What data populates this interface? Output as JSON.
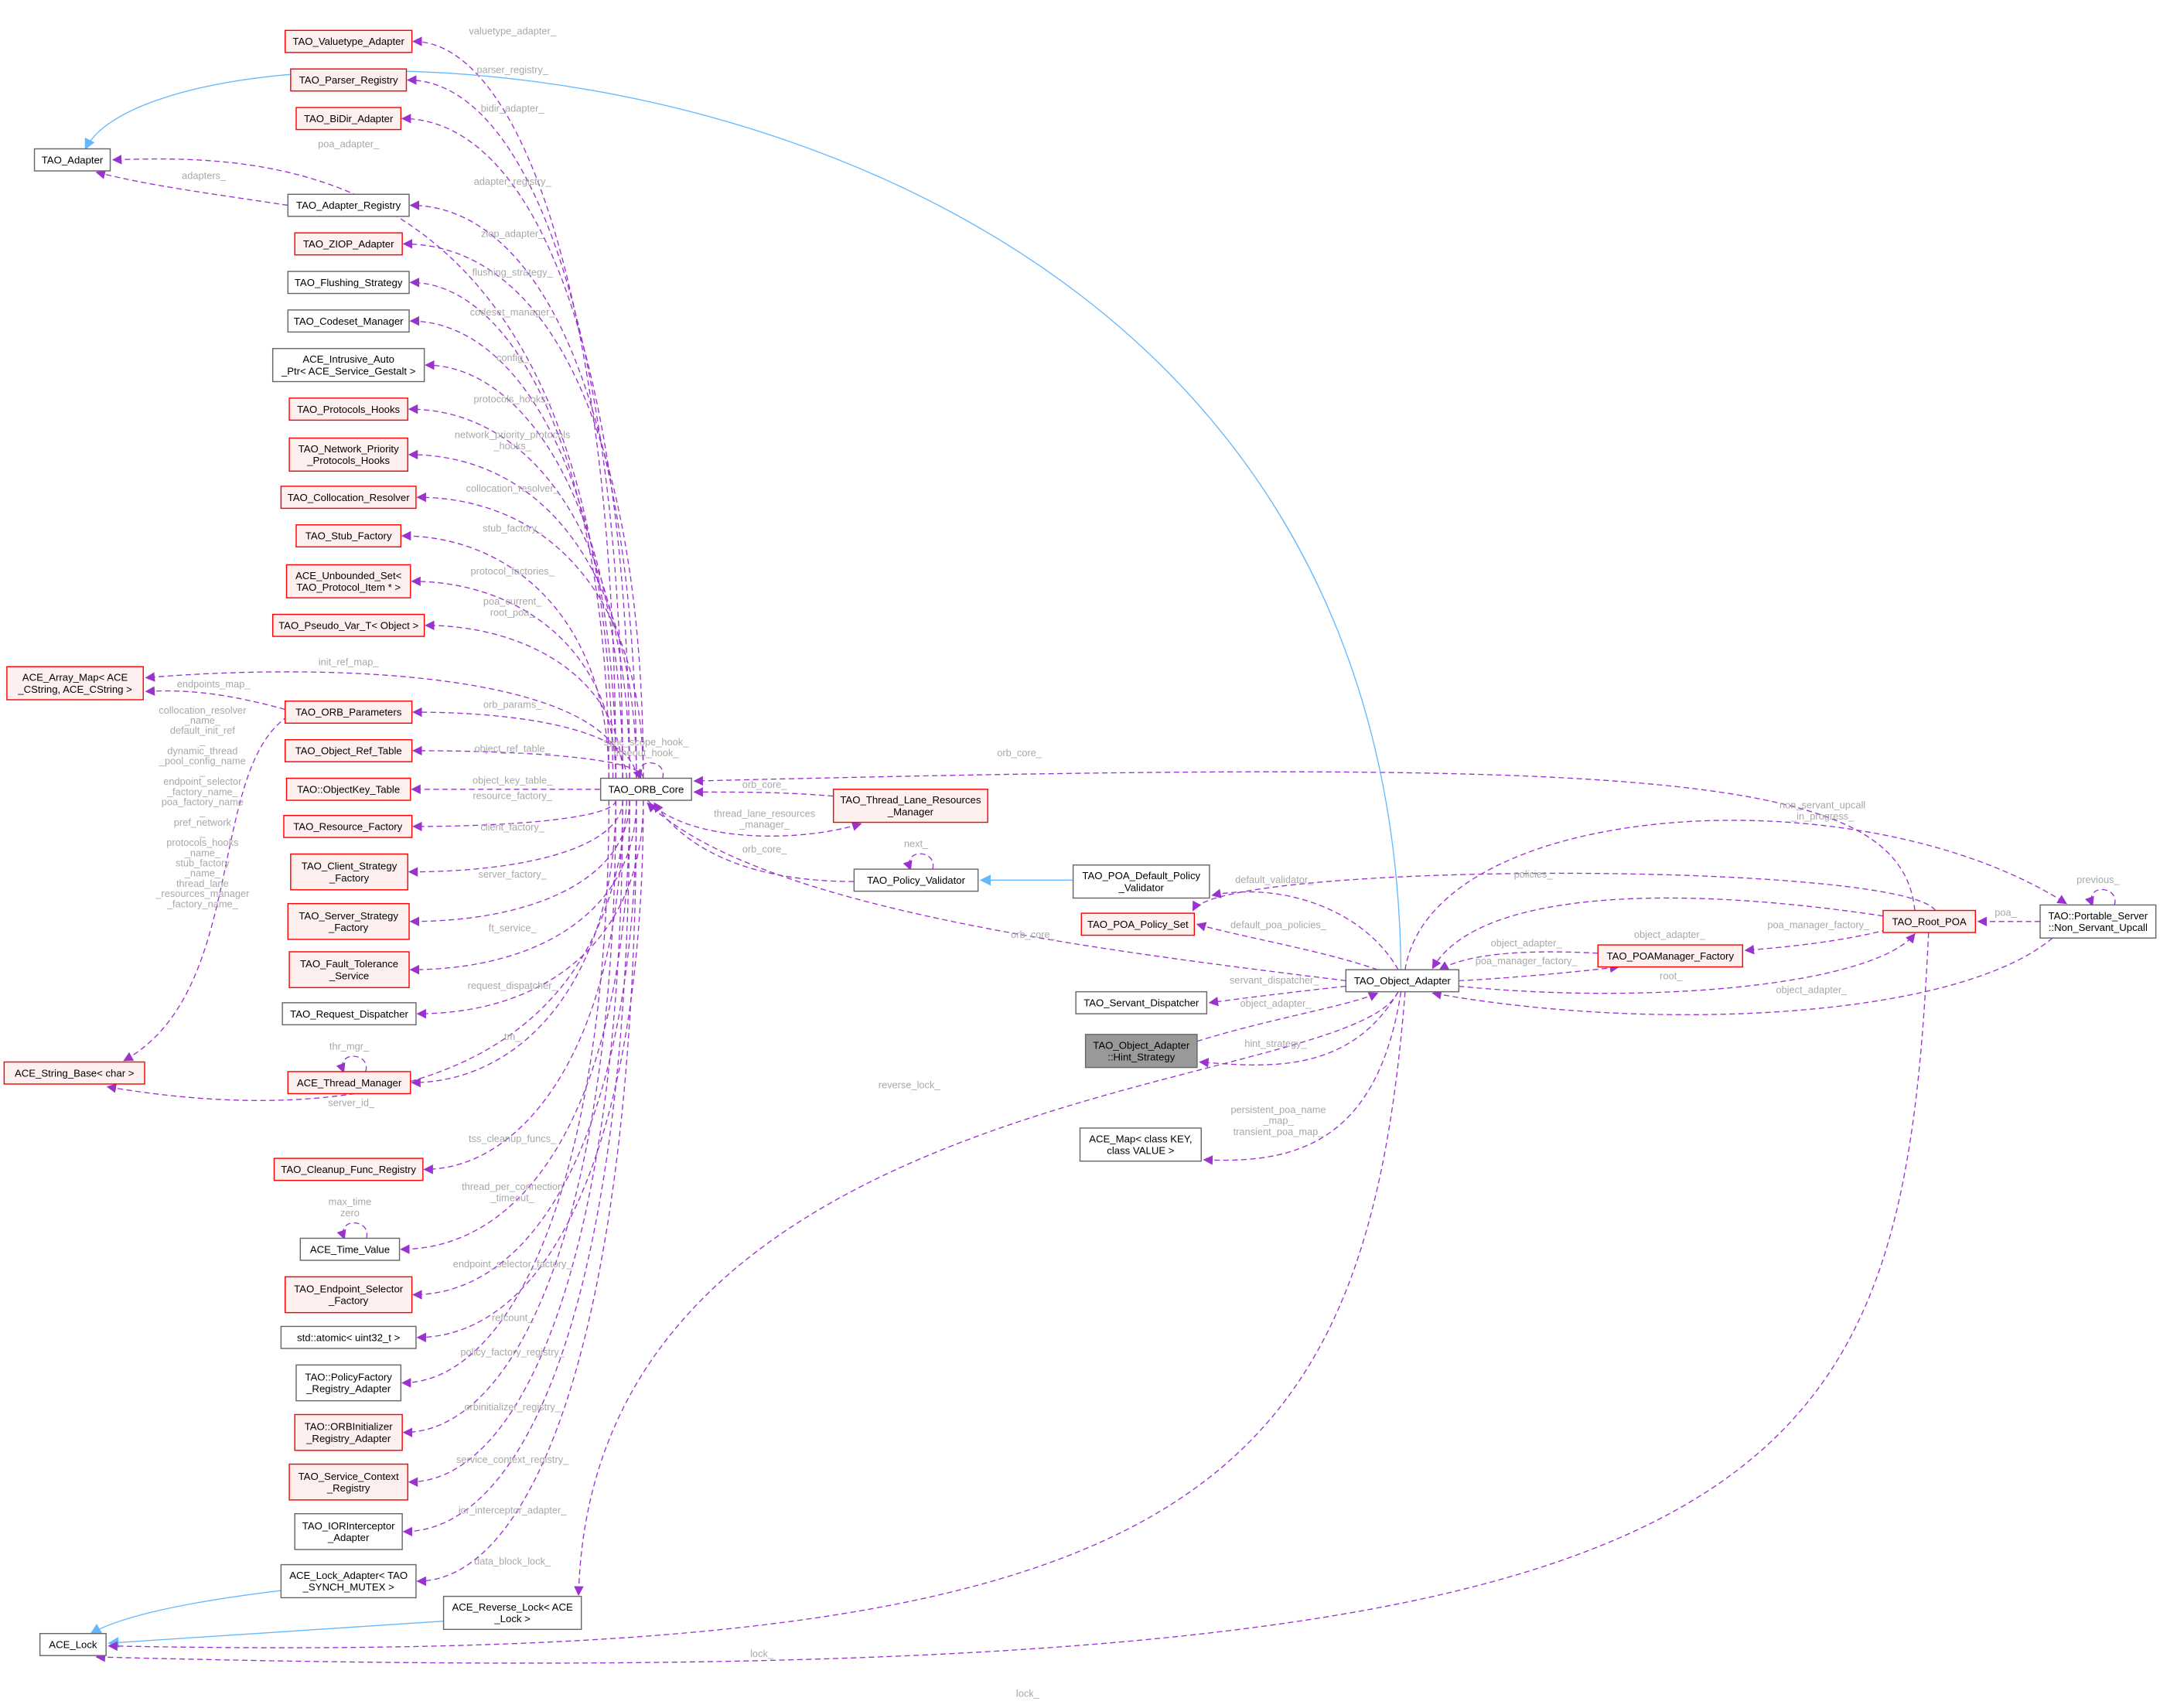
{
  "colors": {
    "member_edge": "#9a32cd",
    "inherit_edge": "#63b8ff",
    "red_border": "#ff0000",
    "red_fill": "#fff0f0",
    "gray_fill": "#999999",
    "label": "#a8a8a8"
  },
  "nodes": [
    {
      "lines": [
        "TAO_Adapter"
      ],
      "style": "black"
    },
    {
      "lines": [
        "TAO_Valuetype_Adapter"
      ],
      "style": "red"
    },
    {
      "lines": [
        "TAO_Parser_Registry"
      ],
      "style": "red"
    },
    {
      "lines": [
        "TAO_BiDir_Adapter"
      ],
      "style": "red"
    },
    {
      "lines": [
        "TAO_Adapter_Registry"
      ],
      "style": "black"
    },
    {
      "lines": [
        "TAO_ZIOP_Adapter"
      ],
      "style": "red"
    },
    {
      "lines": [
        "TAO_Flushing_Strategy"
      ],
      "style": "black"
    },
    {
      "lines": [
        "TAO_Codeset_Manager"
      ],
      "style": "black"
    },
    {
      "lines": [
        "ACE_Intrusive_Auto",
        "_Ptr< ACE_Service_Gestalt >"
      ],
      "style": "black"
    },
    {
      "lines": [
        "TAO_Protocols_Hooks"
      ],
      "style": "red"
    },
    {
      "lines": [
        "TAO_Network_Priority",
        "_Protocols_Hooks"
      ],
      "style": "red"
    },
    {
      "lines": [
        "TAO_Collocation_Resolver"
      ],
      "style": "red"
    },
    {
      "lines": [
        "TAO_Stub_Factory"
      ],
      "style": "red"
    },
    {
      "lines": [
        "ACE_Unbounded_Set<",
        "TAO_Protocol_Item * >"
      ],
      "style": "red"
    },
    {
      "lines": [
        "TAO_Pseudo_Var_T< Object >"
      ],
      "style": "red"
    },
    {
      "lines": [
        "ACE_Array_Map< ACE",
        "_CString, ACE_CString >"
      ],
      "style": "red"
    },
    {
      "lines": [
        "TAO_ORB_Parameters"
      ],
      "style": "red"
    },
    {
      "lines": [
        "TAO_Object_Ref_Table"
      ],
      "style": "red"
    },
    {
      "lines": [
        "TAO::ObjectKey_Table"
      ],
      "style": "red"
    },
    {
      "lines": [
        "TAO_Resource_Factory"
      ],
      "style": "red"
    },
    {
      "lines": [
        "TAO_Client_Strategy",
        "_Factory"
      ],
      "style": "red"
    },
    {
      "lines": [
        "TAO_Server_Strategy",
        "_Factory"
      ],
      "style": "red"
    },
    {
      "lines": [
        "TAO_Fault_Tolerance",
        "_Service"
      ],
      "style": "red"
    },
    {
      "lines": [
        "TAO_Request_Dispatcher"
      ],
      "style": "black"
    },
    {
      "lines": [
        "ACE_String_Base< char >"
      ],
      "style": "red"
    },
    {
      "lines": [
        "ACE_Thread_Manager"
      ],
      "style": "red"
    },
    {
      "lines": [
        "TAO_Cleanup_Func_Registry"
      ],
      "style": "red"
    },
    {
      "lines": [
        "ACE_Time_Value"
      ],
      "style": "black"
    },
    {
      "lines": [
        "TAO_Endpoint_Selector",
        "_Factory"
      ],
      "style": "red"
    },
    {
      "lines": [
        "std::atomic< uint32_t >"
      ],
      "style": "black"
    },
    {
      "lines": [
        "TAO::PolicyFactory",
        "_Registry_Adapter"
      ],
      "style": "black"
    },
    {
      "lines": [
        "TAO::ORBInitializer",
        "_Registry_Adapter"
      ],
      "style": "red"
    },
    {
      "lines": [
        "TAO_Service_Context",
        "_Registry"
      ],
      "style": "red"
    },
    {
      "lines": [
        "TAO_IORInterceptor",
        "_Adapter"
      ],
      "style": "black"
    },
    {
      "lines": [
        "ACE_Lock_Adapter< TAO",
        "_SYNCH_MUTEX >"
      ],
      "style": "black"
    },
    {
      "lines": [
        "ACE_Reverse_Lock< ACE",
        "_Lock >"
      ],
      "style": "black"
    },
    {
      "lines": [
        "ACE_Lock"
      ],
      "style": "black"
    },
    {
      "lines": [
        "TAO_ORB_Core"
      ],
      "style": "black"
    },
    {
      "lines": [
        "TAO_Thread_Lane_Resources",
        "_Manager"
      ],
      "style": "red"
    },
    {
      "lines": [
        "TAO_Policy_Validator"
      ],
      "style": "black"
    },
    {
      "lines": [
        "TAO_POA_Default_Policy",
        "_Validator"
      ],
      "style": "black"
    },
    {
      "lines": [
        "TAO_POA_Policy_Set"
      ],
      "style": "red"
    },
    {
      "lines": [
        "TAO_Servant_Dispatcher"
      ],
      "style": "black"
    },
    {
      "lines": [
        "TAO_Object_Adapter",
        "::Hint_Strategy"
      ],
      "style": "gray"
    },
    {
      "lines": [
        "ACE_Map< class KEY,",
        "class VALUE >"
      ],
      "style": "black"
    },
    {
      "lines": [
        "TAO_Object_Adapter"
      ],
      "style": "black"
    },
    {
      "lines": [
        "TAO_POAManager_Factory"
      ],
      "style": "red"
    },
    {
      "lines": [
        "TAO_Root_POA"
      ],
      "style": "red"
    },
    {
      "lines": [
        "TAO::Portable_Server",
        "::Non_Servant_Upcall"
      ],
      "style": "black"
    }
  ],
  "edges": [
    {
      "from": 37,
      "to": 1,
      "kind": "member",
      "label": [
        "valuetype_adapter_"
      ]
    },
    {
      "from": 37,
      "to": 2,
      "kind": "member",
      "label": [
        "parser_registry_"
      ]
    },
    {
      "from": 37,
      "to": 3,
      "kind": "member",
      "label": [
        "bidir_adapter_"
      ]
    },
    {
      "from": 37,
      "to": 0,
      "kind": "member",
      "label": [
        "poa_adapter_"
      ]
    },
    {
      "from": 4,
      "to": 0,
      "kind": "member",
      "label": [
        "adapters_"
      ]
    },
    {
      "from": 37,
      "to": 4,
      "kind": "member",
      "label": [
        "adapter_registry_"
      ]
    },
    {
      "from": 37,
      "to": 5,
      "kind": "member",
      "label": [
        "ziop_adapter_"
      ]
    },
    {
      "from": 37,
      "to": 6,
      "kind": "member",
      "label": [
        "flushing_strategy_"
      ]
    },
    {
      "from": 37,
      "to": 7,
      "kind": "member",
      "label": [
        "codeset_manager_"
      ]
    },
    {
      "from": 37,
      "to": 8,
      "kind": "member",
      "label": [
        "config_"
      ]
    },
    {
      "from": 37,
      "to": 9,
      "kind": "member",
      "label": [
        "protocols_hooks_"
      ]
    },
    {
      "from": 37,
      "to": 10,
      "kind": "member",
      "label": [
        "network_priority_protocols",
        "_hooks_"
      ]
    },
    {
      "from": 37,
      "to": 11,
      "kind": "member",
      "label": [
        "collocation_resolver_"
      ]
    },
    {
      "from": 37,
      "to": 12,
      "kind": "member",
      "label": [
        "stub_factory_"
      ]
    },
    {
      "from": 37,
      "to": 13,
      "kind": "member",
      "label": [
        "protocol_factories_"
      ]
    },
    {
      "from": 37,
      "to": 14,
      "kind": "member",
      "label": [
        "poa_current_",
        "root_poa_"
      ]
    },
    {
      "from": 37,
      "to": 15,
      "kind": "member",
      "label": [
        "init_ref_map_"
      ]
    },
    {
      "from": 16,
      "to": 15,
      "kind": "member",
      "label": [
        "endpoints_map_"
      ]
    },
    {
      "from": 16,
      "to": 24,
      "kind": "member",
      "label": [
        "collocation_resolver",
        "_name_",
        "default_init_ref",
        "_",
        "dynamic_thread",
        "_pool_config_name",
        "_",
        "endpoint_selector",
        "_factory_name_",
        "poa_factory_name",
        "_",
        "pref_network",
        "_",
        "protocols_hooks",
        "_name_",
        "stub_factory",
        "_name_",
        "thread_lane",
        "_resources_manager",
        "_factory_name_"
      ]
    },
    {
      "from": 37,
      "to": 16,
      "kind": "member",
      "label": [
        "orb_params_"
      ]
    },
    {
      "from": 37,
      "to": 17,
      "kind": "member",
      "label": [
        "object_ref_table_"
      ]
    },
    {
      "from": 37,
      "to": 18,
      "kind": "member",
      "label": [
        "object_key_table_"
      ]
    },
    {
      "from": 37,
      "to": 19,
      "kind": "member",
      "label": [
        "resource_factory_"
      ]
    },
    {
      "from": 37,
      "to": 20,
      "kind": "member",
      "label": [
        "client_factory_"
      ]
    },
    {
      "from": 37,
      "to": 21,
      "kind": "member",
      "label": [
        "server_factory_"
      ]
    },
    {
      "from": 37,
      "to": 22,
      "kind": "member",
      "label": [
        "ft_service_"
      ]
    },
    {
      "from": 37,
      "to": 23,
      "kind": "member",
      "label": [
        "request_dispatcher_"
      ]
    },
    {
      "from": 37,
      "to": 25,
      "kind": "member",
      "label": [
        "tm_"
      ]
    },
    {
      "from": 25,
      "to": 25,
      "kind": "member",
      "label": [
        "thr_mgr_"
      ]
    },
    {
      "from": 37,
      "to": 24,
      "kind": "member",
      "label": [
        "server_id_"
      ]
    },
    {
      "from": 37,
      "to": 26,
      "kind": "member",
      "label": [
        "tss_cleanup_funcs_"
      ]
    },
    {
      "from": 37,
      "to": 27,
      "kind": "member",
      "label": [
        "thread_per_connection",
        "_timeout_"
      ]
    },
    {
      "from": 27,
      "to": 27,
      "kind": "member",
      "label": [
        "max_time",
        "zero"
      ]
    },
    {
      "from": 37,
      "to": 28,
      "kind": "member",
      "label": [
        "endpoint_selector_factory_"
      ]
    },
    {
      "from": 37,
      "to": 29,
      "kind": "member",
      "label": [
        "refcount_"
      ]
    },
    {
      "from": 37,
      "to": 30,
      "kind": "member",
      "label": [
        "policy_factory_registry_"
      ]
    },
    {
      "from": 37,
      "to": 31,
      "kind": "member",
      "label": [
        "orbinitializer_registry_"
      ]
    },
    {
      "from": 37,
      "to": 32,
      "kind": "member",
      "label": [
        "service_context_registry_"
      ]
    },
    {
      "from": 37,
      "to": 33,
      "kind": "member",
      "label": [
        "ior_interceptor_adapter_"
      ]
    },
    {
      "from": 37,
      "to": 34,
      "kind": "member",
      "label": [
        "data_block_lock_"
      ]
    },
    {
      "from": 34,
      "to": 36,
      "kind": "inherit",
      "label": []
    },
    {
      "from": 35,
      "to": 36,
      "kind": "inherit",
      "label": []
    },
    {
      "from": 37,
      "to": 37,
      "kind": "member",
      "label": [
        "sync_scope_hook_",
        "timeout_hook_"
      ]
    },
    {
      "from": 37,
      "to": 38,
      "kind": "member",
      "label": [
        "thread_lane_resources",
        "_manager_"
      ]
    },
    {
      "from": 38,
      "to": 37,
      "kind": "member",
      "label": [
        "orb_core_"
      ]
    },
    {
      "from": 39,
      "to": 37,
      "kind": "member",
      "label": [
        "orb_core_"
      ]
    },
    {
      "from": 39,
      "to": 39,
      "kind": "member",
      "label": [
        "next_"
      ]
    },
    {
      "from": 40,
      "to": 39,
      "kind": "inherit",
      "label": []
    },
    {
      "from": 45,
      "to": 37,
      "kind": "member",
      "label": [
        "orb_core_"
      ]
    },
    {
      "from": 47,
      "to": 37,
      "kind": "member",
      "label": [
        "orb_core_"
      ]
    },
    {
      "from": 45,
      "to": 0,
      "kind": "inherit",
      "label": []
    },
    {
      "from": 45,
      "to": 40,
      "kind": "member",
      "label": [
        "default_validator_"
      ]
    },
    {
      "from": 47,
      "to": 41,
      "kind": "member",
      "label": [
        "policies_"
      ]
    },
    {
      "from": 45,
      "to": 41,
      "kind": "member",
      "label": [
        "default_poa_policies_"
      ]
    },
    {
      "from": 45,
      "to": 42,
      "kind": "member",
      "label": [
        "servant_dispatcher_"
      ]
    },
    {
      "from": 43,
      "to": 45,
      "kind": "member",
      "label": [
        "object_adapter_"
      ]
    },
    {
      "from": 45,
      "to": 43,
      "kind": "member",
      "label": [
        "hint_strategy_"
      ]
    },
    {
      "from": 45,
      "to": 44,
      "kind": "member",
      "label": [
        "persistent_poa_name",
        "_map_",
        "transient_poa_map_"
      ]
    },
    {
      "from": 45,
      "to": 35,
      "kind": "member",
      "label": [
        "reverse_lock_"
      ]
    },
    {
      "from": 45,
      "to": 36,
      "kind": "member",
      "label": [
        "lock_"
      ]
    },
    {
      "from": 47,
      "to": 36,
      "kind": "member",
      "label": [
        "lock_"
      ]
    },
    {
      "from": 47,
      "to": 45,
      "kind": "member",
      "label": [
        "object_adapter_"
      ]
    },
    {
      "from": 46,
      "to": 45,
      "kind": "member",
      "label": [
        "object_adapter_"
      ]
    },
    {
      "from": 45,
      "to": 46,
      "kind": "member",
      "label": [
        "poa_manager_factory_"
      ]
    },
    {
      "from": 47,
      "to": 46,
      "kind": "member",
      "label": [
        "poa_manager_factory_"
      ]
    },
    {
      "from": 45,
      "to": 47,
      "kind": "member",
      "label": [
        "root_"
      ]
    },
    {
      "from": 48,
      "to": 45,
      "kind": "member",
      "label": [
        "object_adapter_"
      ]
    },
    {
      "from": 45,
      "to": 48,
      "kind": "member",
      "label": [
        "non_servant_upcall",
        "_in_progress_"
      ]
    },
    {
      "from": 48,
      "to": 47,
      "kind": "member",
      "label": [
        "poa_"
      ]
    },
    {
      "from": 48,
      "to": 48,
      "kind": "member",
      "label": [
        "previous_"
      ]
    }
  ]
}
